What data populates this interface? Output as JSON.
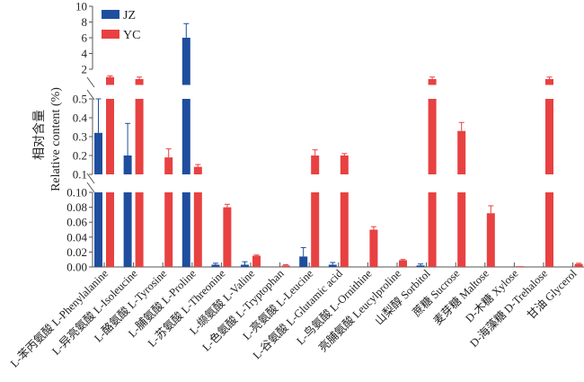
{
  "chart_data": {
    "type": "bar",
    "title": "",
    "xlabel": "",
    "ylabel_cn": "相对含量",
    "ylabel_en": "Relative content (%)",
    "legend_position": "top-left",
    "colors": {
      "JZ": "#1f4e9e",
      "YC": "#e84141"
    },
    "axis_segments": [
      {
        "range": [
          0,
          0.1
        ],
        "ticks": [
          "0.00",
          "0.02",
          "0.04",
          "0.06",
          "0.08",
          "0.10"
        ],
        "tick_values": [
          0,
          0.02,
          0.04,
          0.06,
          0.08,
          0.1
        ]
      },
      {
        "range": [
          0.1,
          0.5
        ],
        "ticks": [
          "0.1",
          "0.2",
          "0.3",
          "0.4",
          "0.5"
        ],
        "tick_values": [
          0.1,
          0.2,
          0.3,
          0.4,
          0.5
        ]
      },
      {
        "range": [
          0,
          10
        ],
        "ticks": [
          "2",
          "4",
          "6",
          "8",
          "10"
        ],
        "tick_values": [
          2,
          4,
          6,
          8,
          10
        ]
      }
    ],
    "categories": [
      "L-苯丙氨酸 L-Phenylalanine",
      "L-异亮氨酸 L-Isoleucine",
      "L-酪氨酸 L-Tyrosine",
      "L-脯氨酸 L-Proline",
      "L-苏氨酸 L-Threonine",
      "L-缬氨酸 L-Valine",
      "L-色氨酸 L-Tryptophan",
      "L-亮氨酸 L-Leucine",
      "L-谷氨酸 L-Glutamic acid",
      "L-鸟氨酸 L-Ornithine",
      "亮脯氨酸 Leucylproline",
      "山梨醇 Sorbitol",
      "蔗糖 Sucrose",
      "麦芽糖 Maltose",
      "D-木糖 Xylose",
      "D-海藻糖 D-Trehalose",
      "甘油 Glycerol"
    ],
    "series": [
      {
        "name": "JZ",
        "values": [
          0.32,
          0.2,
          0.0,
          6.0,
          0.003,
          0.003,
          0.0,
          0.014,
          0.003,
          0.0,
          0.0,
          0.002,
          0.0,
          0.0,
          0.0,
          0.0,
          0.0
        ],
        "errors": [
          0.18,
          0.17,
          0.0,
          1.8,
          0.002,
          0.004,
          0.0,
          0.012,
          0.003,
          0.0,
          0.0,
          0.002,
          0.0,
          0.0,
          0.0,
          0.0,
          0.0
        ]
      },
      {
        "name": "YC",
        "values": [
          1.0,
          0.75,
          0.19,
          0.14,
          0.08,
          0.015,
          0.002,
          0.2,
          0.2,
          0.05,
          0.009,
          0.7,
          0.33,
          0.072,
          0.001,
          0.8,
          0.004
        ],
        "errors": [
          0.15,
          0.1,
          0.045,
          0.012,
          0.004,
          0.001,
          0.001,
          0.03,
          0.01,
          0.004,
          0.001,
          0.1,
          0.045,
          0.01,
          0.0005,
          0.15,
          0.001
        ]
      }
    ]
  }
}
